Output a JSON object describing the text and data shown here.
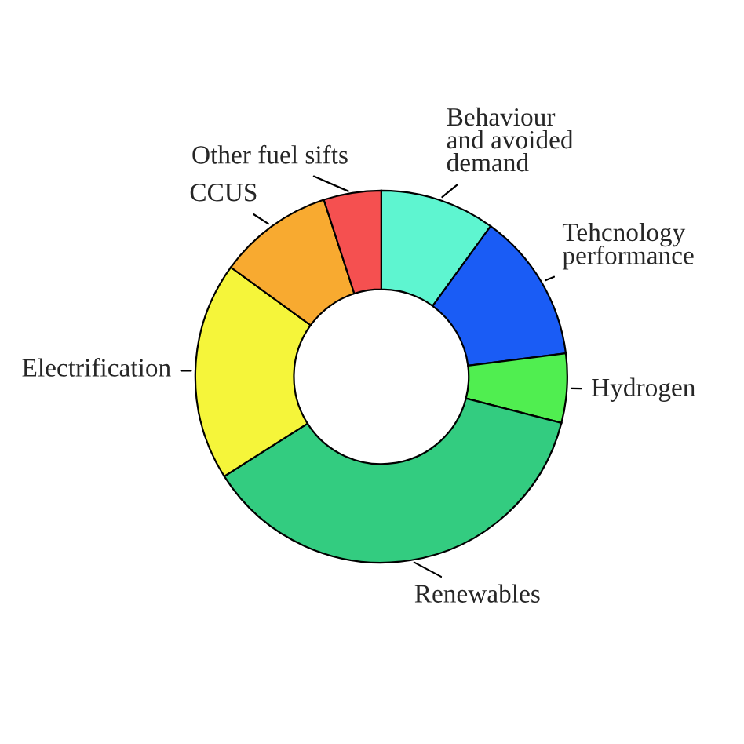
{
  "chart_data": {
    "type": "donut",
    "categories": [
      "Behaviour\nand avoided\ndemand",
      "Tehcnology\nperformance",
      "Hydrogen",
      "Renewables",
      "Electrification",
      "CCUS",
      "Other fuel sifts"
    ],
    "values": [
      10,
      13,
      6,
      37,
      19,
      10,
      5
    ],
    "colors": [
      "#5ef5d0",
      "#1a5cf5",
      "#50ee50",
      "#33cc80",
      "#f5f53a",
      "#f8aa30",
      "#f55050"
    ],
    "legend": false
  }
}
